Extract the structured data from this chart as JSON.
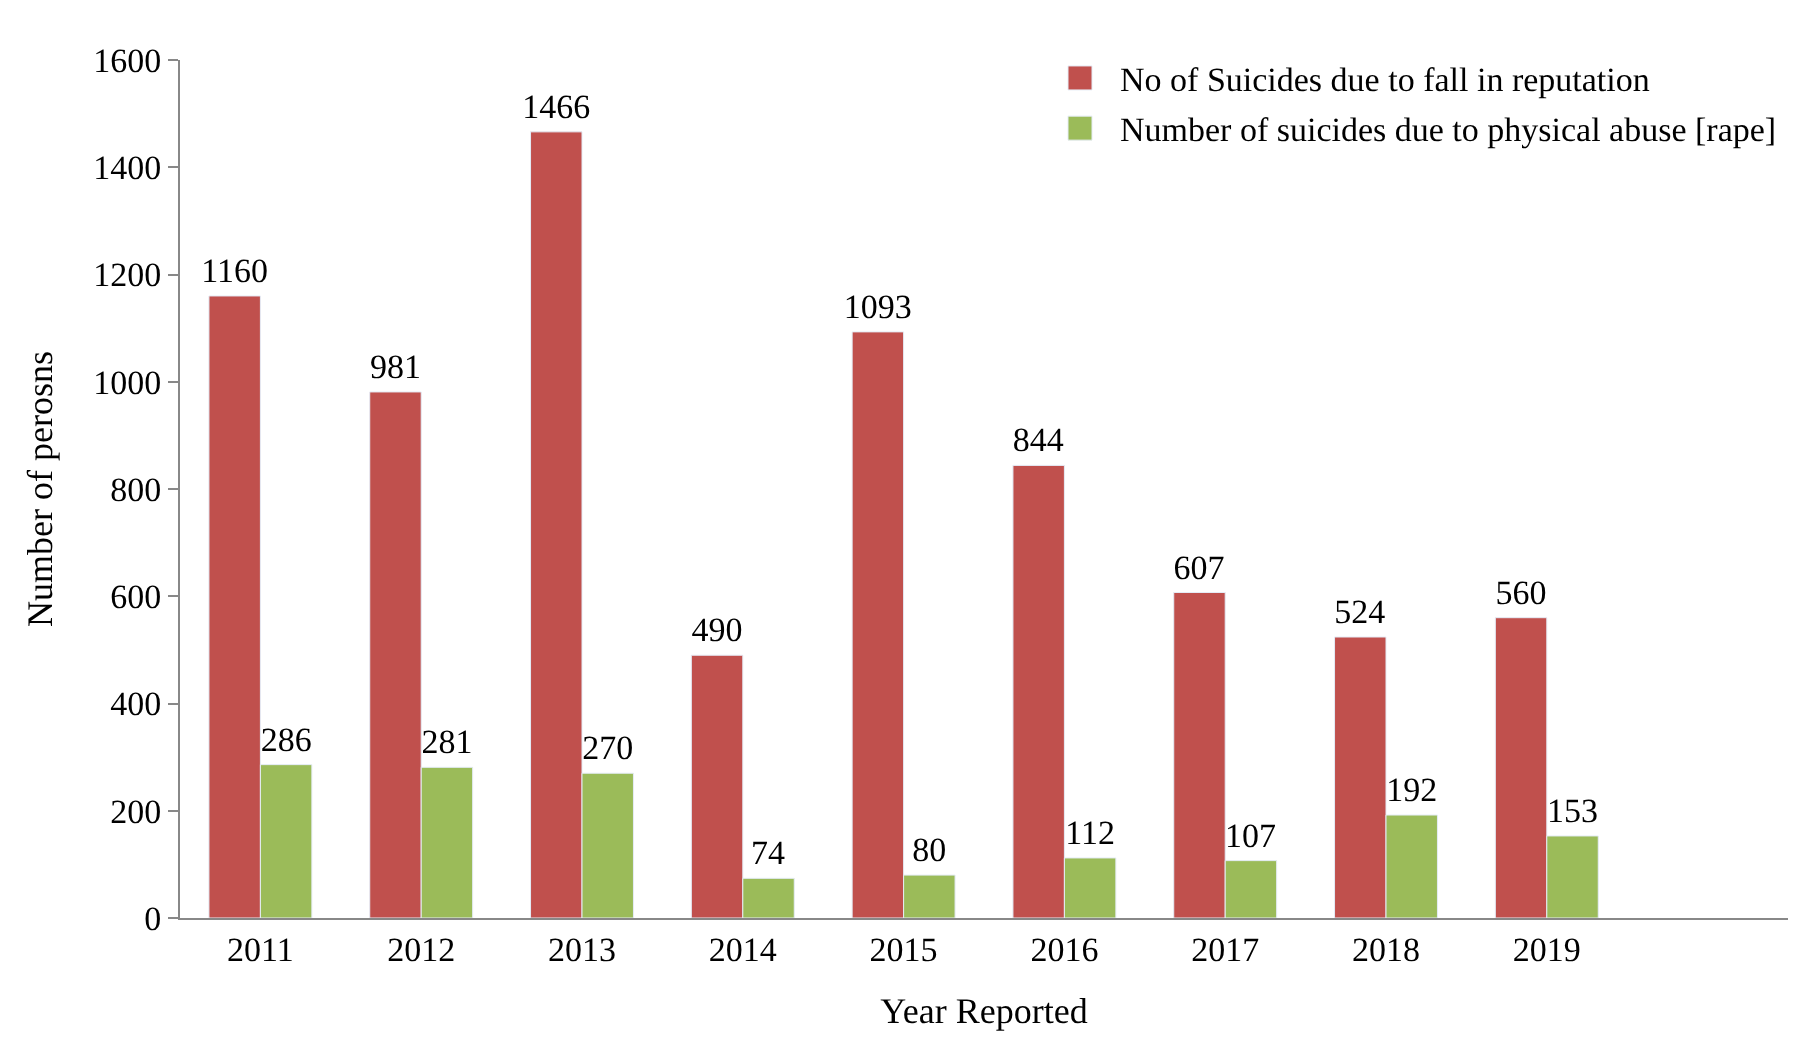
{
  "chart_data": {
    "type": "bar",
    "xlabel": "Year Reported",
    "ylabel": "Number of perosns",
    "categories": [
      "2011",
      "2012",
      "2013",
      "2014",
      "2015",
      "2016",
      "2017",
      "2018",
      "2019",
      null
    ],
    "series": [
      {
        "name": "No of Suicides due to fall in reputation",
        "color": "#c0504d",
        "values": [
          1160,
          981,
          1466,
          490,
          1093,
          844,
          607,
          524,
          560,
          null
        ]
      },
      {
        "name": "Number of suicides due to physical abuse [rape]",
        "color": "#9bbb59",
        "values": [
          286,
          281,
          270,
          74,
          80,
          112,
          107,
          192,
          153,
          null
        ]
      }
    ],
    "ylim": [
      0,
      1600
    ],
    "yticks": [
      0,
      200,
      400,
      600,
      800,
      1000,
      1200,
      1400,
      1600
    ],
    "data_labels": true,
    "legend": "top right"
  }
}
